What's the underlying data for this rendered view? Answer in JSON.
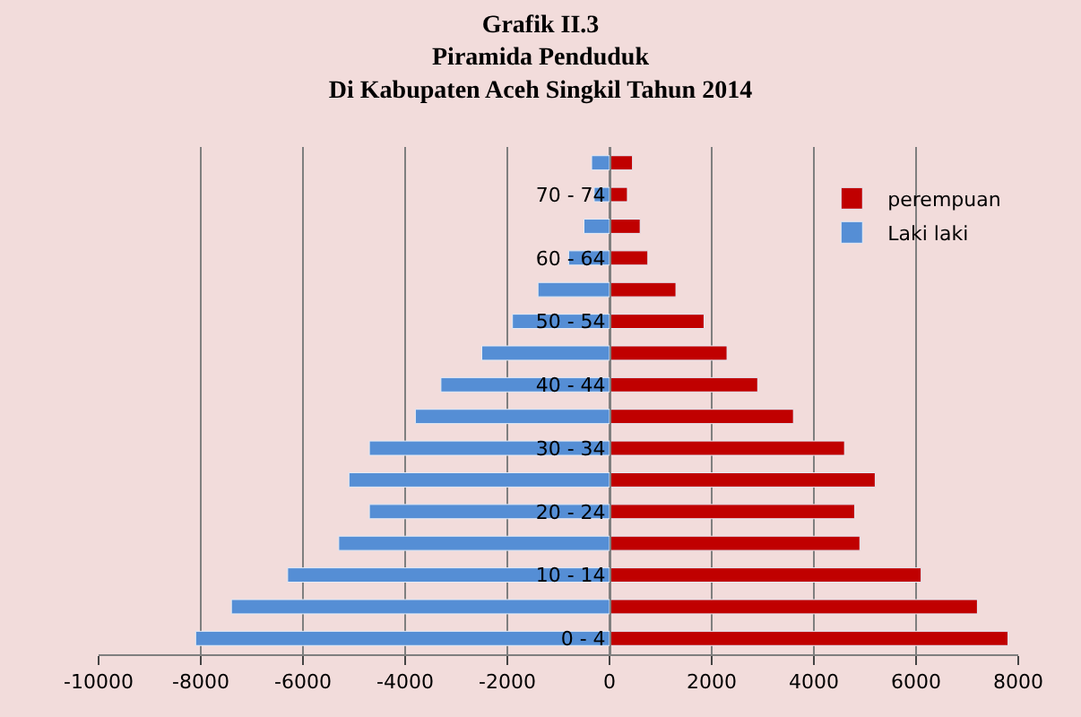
{
  "chart_data": {
    "type": "bar",
    "orientation": "horizontal",
    "title": "Grafik II.3\nPiramida Penduduk\nDi Kabupaten Aceh Singkil Tahun 2014",
    "categories": [
      null,
      "70 - 74",
      null,
      "60 - 64",
      null,
      "50 - 54",
      null,
      "40 - 44",
      null,
      "30 - 34",
      null,
      "20 - 24",
      null,
      "10 - 14",
      null,
      "0 - 4"
    ],
    "series": [
      {
        "name": "perempuan",
        "color": "#c00000",
        "values": [
          450,
          350,
          600,
          750,
          1300,
          1850,
          2300,
          2900,
          3600,
          4600,
          5200,
          4800,
          4900,
          6100,
          7200,
          7800
        ]
      },
      {
        "name": "Laki laki",
        "color": "#558ed5",
        "values": [
          -350,
          -300,
          -500,
          -800,
          -1400,
          -1900,
          -2500,
          -3300,
          -3800,
          -4700,
          -5100,
          -4700,
          -5300,
          -6300,
          -7400,
          -8100
        ]
      }
    ],
    "xlim": [
      -10000,
      8000
    ],
    "xticks": [
      -10000,
      -8000,
      -6000,
      -4000,
      -2000,
      0,
      2000,
      4000,
      6000,
      8000
    ],
    "grid": "x",
    "legend": "top right",
    "stacked": true
  }
}
